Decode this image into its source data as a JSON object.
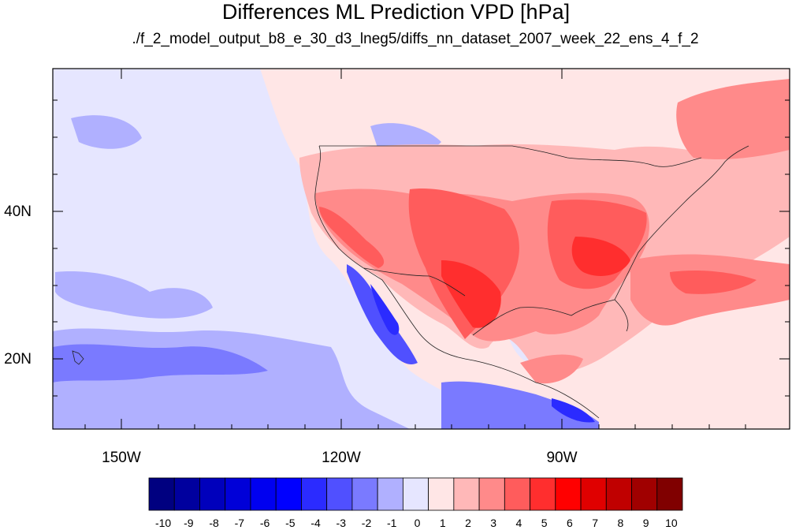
{
  "figure": {
    "title": "Differences ML Prediction VPD [hPa]",
    "subtitle": "./f_2_model_output_b8_e_30_d3_lneg5/diffs_nn_dataset_2007_week_22_ens_4_f_2"
  },
  "axes": {
    "lat_labels": [
      "40N",
      "20N"
    ],
    "lon_labels": [
      "150W",
      "120W",
      "90W"
    ]
  },
  "colorbar": {
    "labels": [
      "-10",
      "-9",
      "-8",
      "-7",
      "-6",
      "-5",
      "-4",
      "-3",
      "-2",
      "-1",
      "0",
      "1",
      "2",
      "3",
      "4",
      "5",
      "6",
      "7",
      "8",
      "9",
      "10"
    ],
    "colors": [
      "#000080",
      "#00009e",
      "#0000bc",
      "#0000d8",
      "#0000f0",
      "#0000ff",
      "#2b2bff",
      "#5050ff",
      "#7a7aff",
      "#b0b0ff",
      "#e6e6ff",
      "#ffe6e6",
      "#ffb8b8",
      "#ff8a8a",
      "#ff5c5c",
      "#ff2e2e",
      "#ff0000",
      "#e00000",
      "#c00000",
      "#a00000",
      "#800000"
    ]
  },
  "colors": {
    "ocean_base": "#ffe6e6",
    "land_warm": "#ff8a8a",
    "land_hot": "#ff2e2e",
    "cool": "#b0b0ff",
    "cold": "#5050ff"
  }
}
